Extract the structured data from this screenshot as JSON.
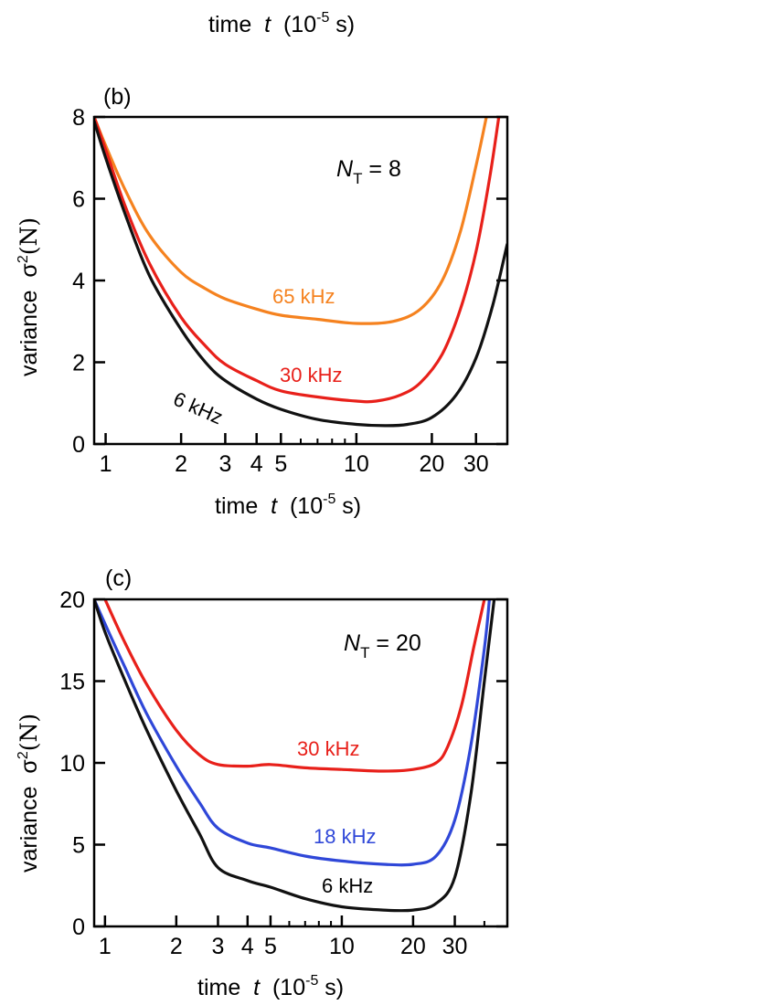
{
  "top_fragment": {
    "xlabel_main": "time  ",
    "xlabel_var": "t",
    "xlabel_unit": "  (10",
    "xlabel_exp": "-5",
    "xlabel_tail": " s)"
  },
  "chart_data": [
    {
      "panel": "(b)",
      "type": "line",
      "x_scale": "log",
      "xlim": [
        0.9,
        40
      ],
      "ylim": [
        0,
        8
      ],
      "xticks": [
        1,
        2,
        3,
        4,
        5,
        10,
        20,
        30
      ],
      "xtick_labels": [
        "1",
        "2",
        "3",
        "4",
        "5",
        "10",
        "20",
        "30"
      ],
      "yticks": [
        0,
        2,
        4,
        6,
        8
      ],
      "ytick_labels": [
        "0",
        "2",
        "4",
        "6",
        "8"
      ],
      "xlabel": {
        "main": "time  ",
        "var": "t",
        "unit": "  (10",
        "exp": "-5",
        "tail": " s)"
      },
      "ylabel": {
        "main": "variance  σ",
        "exp": "2",
        "tail": "(N)"
      },
      "annotation": {
        "var": "N",
        "sub": "T",
        "tail": " = 8"
      },
      "series": [
        {
          "name": "65 kHz",
          "color": "#f5821f",
          "x": [
            0.9,
            1.0,
            1.2,
            1.5,
            2.0,
            2.5,
            3.0,
            4.0,
            5.0,
            7.0,
            10.0,
            14.0,
            18.0,
            22.0,
            26.0,
            30.0,
            33.0
          ],
          "y": [
            8.0,
            7.3,
            6.2,
            5.1,
            4.2,
            3.8,
            3.55,
            3.3,
            3.15,
            3.05,
            2.95,
            3.0,
            3.3,
            4.0,
            5.2,
            6.8,
            8.0
          ]
        },
        {
          "name": "30 kHz",
          "color": "#e8201a",
          "x": [
            0.9,
            1.0,
            1.2,
            1.5,
            2.0,
            2.5,
            3.0,
            4.0,
            5.0,
            7.0,
            10.0,
            12.0,
            15.0,
            18.0,
            22.0,
            26.0,
            30.0,
            34.0,
            37.0
          ],
          "y": [
            8.0,
            7.2,
            5.8,
            4.4,
            3.1,
            2.4,
            1.95,
            1.55,
            1.3,
            1.15,
            1.05,
            1.05,
            1.2,
            1.5,
            2.2,
            3.3,
            4.7,
            6.5,
            8.0
          ]
        },
        {
          "name": "6 kHz",
          "color": "#111111",
          "x": [
            0.9,
            1.0,
            1.2,
            1.5,
            2.0,
            2.5,
            3.0,
            4.0,
            5.0,
            7.0,
            10.0,
            13.0,
            16.0,
            20.0,
            25.0,
            30.0,
            35.0,
            40.0
          ],
          "y": [
            7.9,
            7.0,
            5.6,
            4.1,
            2.8,
            2.0,
            1.55,
            1.1,
            0.85,
            0.6,
            0.48,
            0.45,
            0.48,
            0.65,
            1.2,
            2.1,
            3.4,
            4.9
          ]
        }
      ],
      "labels": [
        "65 kHz",
        "30 kHz",
        "6 kHz"
      ]
    },
    {
      "panel": "(c)",
      "type": "line",
      "x_scale": "log",
      "xlim": [
        0.9,
        50
      ],
      "ylim": [
        0,
        20
      ],
      "xticks": [
        1,
        2,
        3,
        4,
        5,
        10,
        20,
        30
      ],
      "xtick_labels": [
        "1",
        "2",
        "3",
        "4",
        "5",
        "10",
        "20",
        "30"
      ],
      "yticks": [
        0,
        5,
        10,
        15,
        20
      ],
      "ytick_labels": [
        "0",
        "5",
        "10",
        "15",
        "20"
      ],
      "xlabel": {
        "main": "time  ",
        "var": "t",
        "unit": "  (10",
        "exp": "-5",
        "tail": " s)"
      },
      "ylabel": {
        "main": "variance  σ",
        "exp": "2",
        "tail": "(N)"
      },
      "annotation": {
        "var": "N",
        "sub": "T",
        "tail": " = 20"
      },
      "series": [
        {
          "name": "30 kHz",
          "color": "#e8201a",
          "x": [
            1.0,
            1.2,
            1.5,
            2.0,
            2.5,
            3.0,
            4.0,
            5.0,
            7.0,
            10.0,
            15.0,
            20.0,
            25.0,
            28.0,
            32.0,
            36.0,
            40.0
          ],
          "y": [
            20.0,
            17.5,
            14.8,
            12.0,
            10.5,
            9.9,
            9.8,
            9.9,
            9.7,
            9.6,
            9.5,
            9.6,
            10.0,
            11.0,
            13.5,
            17.0,
            20.0
          ]
        },
        {
          "name": "18 kHz",
          "color": "#2f47d8",
          "x": [
            0.9,
            1.0,
            1.2,
            1.5,
            2.0,
            2.5,
            3.0,
            4.0,
            5.0,
            7.0,
            10.0,
            15.0,
            20.0,
            25.0,
            30.0,
            35.0,
            40.0,
            42.0
          ],
          "y": [
            20.0,
            18.5,
            16.0,
            13.0,
            9.8,
            7.6,
            6.0,
            5.1,
            4.8,
            4.3,
            4.0,
            3.8,
            3.8,
            4.3,
            6.5,
            11.0,
            17.0,
            20.0
          ]
        },
        {
          "name": "6 kHz",
          "color": "#111111",
          "x": [
            0.9,
            1.0,
            1.2,
            1.5,
            2.0,
            2.5,
            3.0,
            4.0,
            5.0,
            7.0,
            10.0,
            15.0,
            20.0,
            25.0,
            30.0,
            35.0,
            40.0,
            44.0
          ],
          "y": [
            20.0,
            18.0,
            15.2,
            12.0,
            8.3,
            5.7,
            3.6,
            2.8,
            2.4,
            1.7,
            1.2,
            1.0,
            1.0,
            1.4,
            3.0,
            8.0,
            15.0,
            20.0
          ]
        }
      ],
      "labels": [
        "30 kHz",
        "18 kHz",
        "6 kHz"
      ]
    }
  ]
}
